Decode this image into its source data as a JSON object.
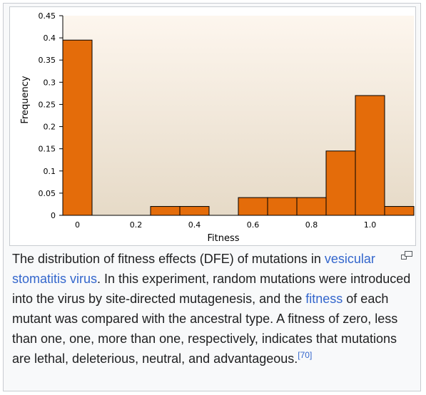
{
  "chart_data": {
    "type": "bar",
    "title": "",
    "xlabel": "Fitness",
    "ylabel": "Frequency",
    "ylim": [
      0,
      0.45
    ],
    "yticks": [
      "0",
      "0.05",
      "0.1",
      "0.15",
      "0.2",
      "0.25",
      "0.3",
      "0.35",
      "0.4",
      "0.45"
    ],
    "xticks": [
      "0",
      "0.2",
      "0.4",
      "0.6",
      "0.8",
      "1.0"
    ],
    "xlim": [
      -0.05,
      1.15
    ],
    "bin_width": 0.1,
    "bars": [
      {
        "x": 0.0,
        "value": 0.395
      },
      {
        "x": 0.1,
        "value": 0.0
      },
      {
        "x": 0.2,
        "value": 0.0
      },
      {
        "x": 0.3,
        "value": 0.02
      },
      {
        "x": 0.4,
        "value": 0.02
      },
      {
        "x": 0.5,
        "value": 0.0
      },
      {
        "x": 0.6,
        "value": 0.04
      },
      {
        "x": 0.7,
        "value": 0.04
      },
      {
        "x": 0.8,
        "value": 0.04
      },
      {
        "x": 0.9,
        "value": 0.145
      },
      {
        "x": 1.0,
        "value": 0.27
      },
      {
        "x": 1.1,
        "value": 0.02
      }
    ],
    "grid": false,
    "bar_color": "#e46c0a",
    "bar_edge_color": "#000000",
    "plot_background_top": "#fdf6ee",
    "plot_background_bottom": "#e6dac7"
  },
  "caption": {
    "text_1": "The distribution of fitness effects (DFE) of mutations in",
    "link_1": "vesicular stomatitis virus",
    "text_2": ". In this experiment, random mutations were introduced into the virus by site-directed mutagenesis, and the",
    "link_2": "fitness",
    "text_3": "of each mutant was compared with the ancestral type. A fitness of zero, less than one, one, more than one, respectively, indicates that mutations are lethal, deleterious, neutral, and advantageous.",
    "ref": "[70]"
  },
  "icons": {
    "enlarge": "enlarge-icon"
  }
}
